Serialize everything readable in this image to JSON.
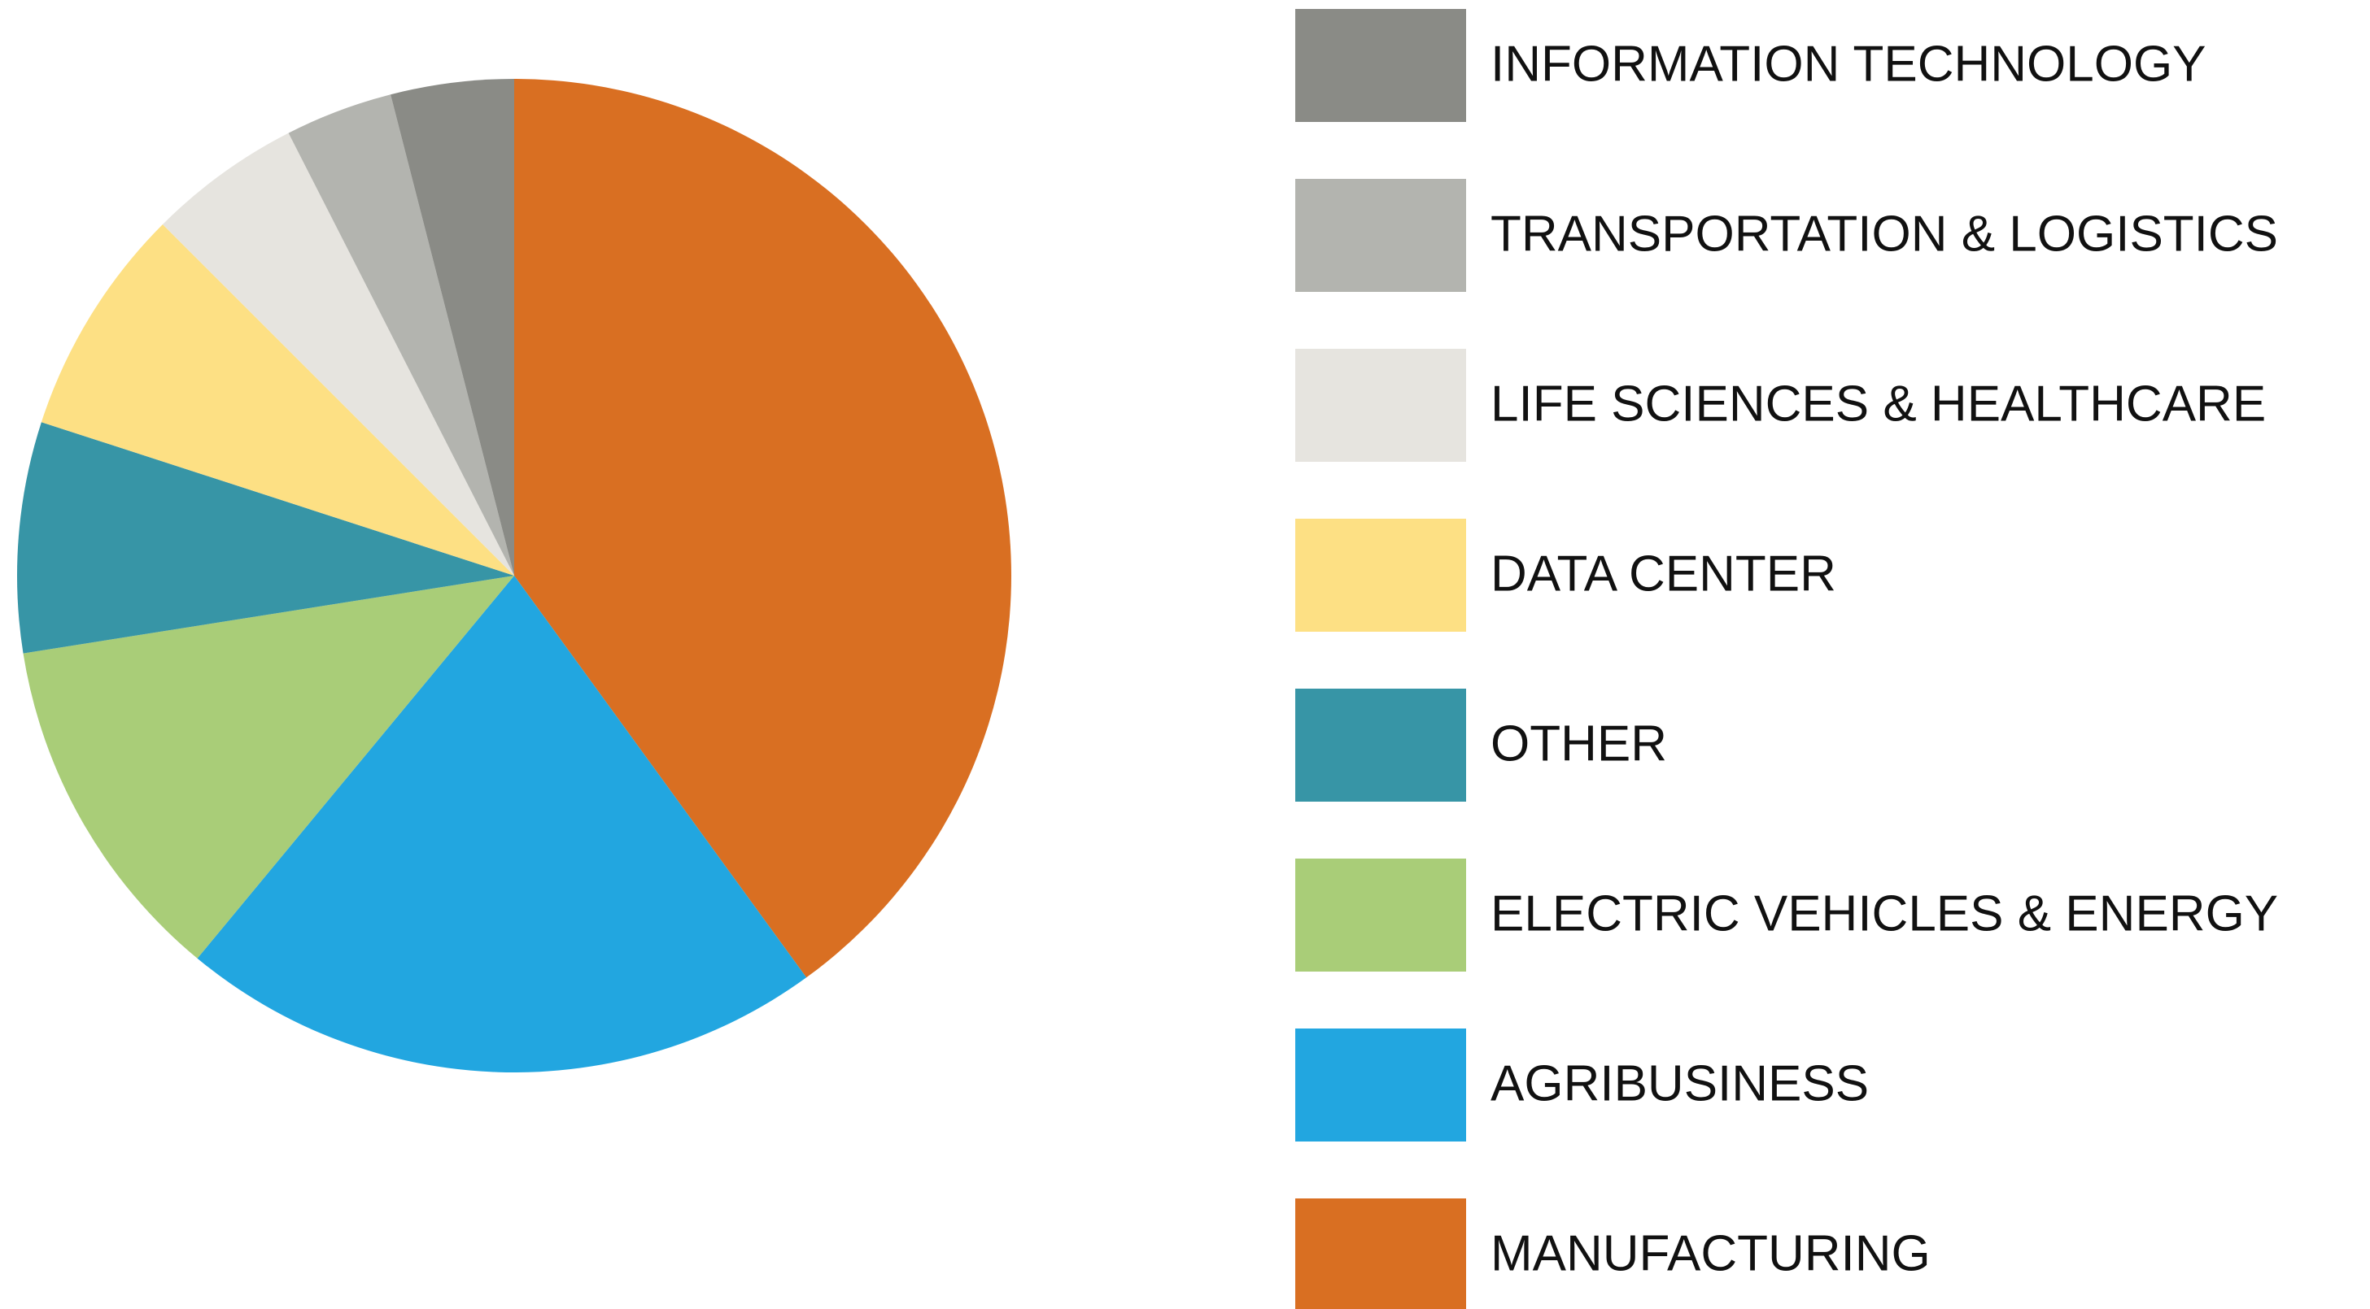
{
  "chart_data": {
    "type": "pie",
    "categories": [
      "MANUFACTURING",
      "AGRIBUSINESS",
      "ELECTRIC VEHICLES & ENERGY",
      "OTHER",
      "DATA CENTER",
      "LIFE SCIENCES & HEALTHCARE",
      "TRANSPORTATION & LOGISTICS",
      "INFORMATION TECHNOLOGY"
    ],
    "values": [
      40,
      21,
      11.5,
      7.5,
      7.5,
      5,
      3.5,
      4
    ],
    "colors": [
      "#d96f22",
      "#22a6e0",
      "#a9cd78",
      "#3795a6",
      "#fde084",
      "#e6e4df",
      "#b3b4af",
      "#8a8b86"
    ],
    "legend": "right"
  }
}
